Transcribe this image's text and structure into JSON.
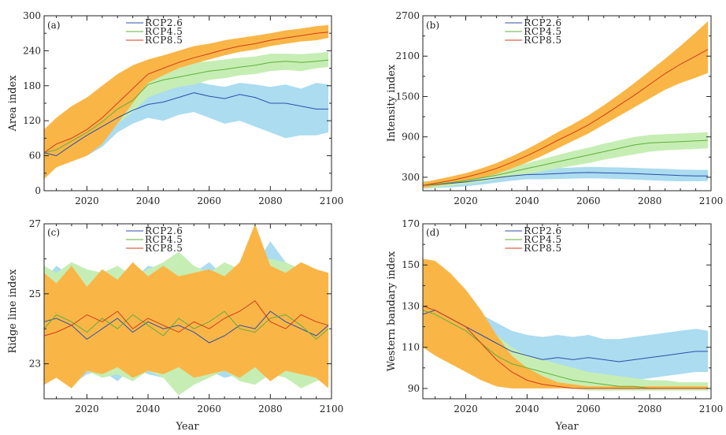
{
  "chart_data": [
    {
      "id": "a",
      "type": "line",
      "panel_label": "(a)",
      "ylabel": "Area index",
      "xlabel": "",
      "xlim": [
        2006,
        2100
      ],
      "ylim": [
        0,
        300
      ],
      "xticks": [
        2020,
        2040,
        2060,
        2080,
        2100
      ],
      "yticks": [
        0,
        60,
        120,
        180,
        240,
        300
      ],
      "x": [
        2006,
        2010,
        2015,
        2020,
        2025,
        2030,
        2035,
        2040,
        2045,
        2050,
        2055,
        2060,
        2065,
        2070,
        2075,
        2080,
        2085,
        2090,
        2095,
        2099
      ],
      "series": [
        {
          "name": "RCP2.6",
          "color": "#2c4fa8",
          "band_color": "#abdcf0",
          "values": [
            65,
            60,
            78,
            95,
            110,
            125,
            138,
            148,
            152,
            160,
            168,
            162,
            158,
            165,
            160,
            150,
            150,
            145,
            140,
            140
          ],
          "lower": [
            50,
            40,
            55,
            60,
            75,
            100,
            115,
            125,
            120,
            130,
            135,
            125,
            115,
            120,
            110,
            100,
            90,
            95,
            95,
            100
          ],
          "upper": [
            90,
            90,
            100,
            112,
            125,
            140,
            155,
            165,
            172,
            182,
            188,
            182,
            178,
            185,
            182,
            178,
            182,
            175,
            185,
            182
          ]
        },
        {
          "name": "RCP4.5",
          "color": "#5faf3a",
          "band_color": "#c6eeb4",
          "values": [
            65,
            70,
            85,
            100,
            118,
            140,
            155,
            182,
            190,
            195,
            200,
            205,
            208,
            212,
            215,
            220,
            222,
            220,
            222,
            224
          ],
          "lower": [
            25,
            40,
            60,
            78,
            95,
            115,
            135,
            160,
            170,
            178,
            182,
            190,
            193,
            198,
            200,
            205,
            207,
            205,
            210,
            212
          ],
          "upper": [
            105,
            110,
            120,
            130,
            145,
            162,
            180,
            200,
            210,
            215,
            220,
            222,
            225,
            228,
            230,
            235,
            235,
            234,
            236,
            238
          ]
        },
        {
          "name": "RCP8.5",
          "color": "#d43a1a",
          "band_color": "#f9b647",
          "values": [
            65,
            80,
            90,
            105,
            125,
            150,
            175,
            200,
            210,
            220,
            228,
            235,
            242,
            248,
            252,
            258,
            262,
            266,
            270,
            272
          ],
          "lower": [
            20,
            40,
            50,
            60,
            80,
            115,
            150,
            185,
            198,
            210,
            218,
            225,
            232,
            238,
            242,
            248,
            252,
            256,
            258,
            262
          ],
          "upper": [
            105,
            125,
            145,
            160,
            180,
            200,
            215,
            225,
            232,
            240,
            248,
            252,
            258,
            262,
            266,
            270,
            275,
            278,
            282,
            284
          ]
        }
      ]
    },
    {
      "id": "b",
      "type": "line",
      "panel_label": "(b)",
      "ylabel": "Intensity index",
      "xlabel": "",
      "xlim": [
        2006,
        2100
      ],
      "ylim": [
        100,
        2700
      ],
      "xticks": [
        2020,
        2040,
        2060,
        2080,
        2100
      ],
      "yticks": [
        300,
        900,
        1500,
        2100,
        2700
      ],
      "x": [
        2006,
        2010,
        2015,
        2020,
        2025,
        2030,
        2035,
        2040,
        2045,
        2050,
        2055,
        2060,
        2065,
        2070,
        2075,
        2080,
        2085,
        2090,
        2095,
        2099
      ],
      "series": [
        {
          "name": "RCP2.6",
          "color": "#2c4fa8",
          "band_color": "#abdcf0",
          "values": [
            180,
            190,
            210,
            230,
            260,
            290,
            320,
            340,
            345,
            355,
            365,
            370,
            365,
            360,
            355,
            345,
            335,
            325,
            320,
            320
          ],
          "lower": [
            130,
            140,
            150,
            165,
            190,
            220,
            250,
            270,
            270,
            275,
            280,
            285,
            280,
            275,
            265,
            255,
            245,
            240,
            240,
            245
          ],
          "upper": [
            240,
            250,
            270,
            295,
            320,
            350,
            380,
            410,
            420,
            435,
            445,
            455,
            450,
            445,
            440,
            430,
            425,
            415,
            410,
            410
          ]
        },
        {
          "name": "RCP4.5",
          "color": "#5faf3a",
          "band_color": "#c6eeb4",
          "values": [
            180,
            195,
            220,
            250,
            290,
            330,
            380,
            430,
            480,
            530,
            580,
            630,
            680,
            730,
            780,
            810,
            820,
            830,
            840,
            850
          ],
          "lower": [
            140,
            150,
            170,
            200,
            230,
            270,
            310,
            350,
            390,
            430,
            470,
            510,
            560,
            600,
            640,
            680,
            700,
            710,
            720,
            730
          ],
          "upper": [
            230,
            250,
            280,
            310,
            350,
            400,
            450,
            510,
            570,
            630,
            690,
            740,
            800,
            850,
            900,
            930,
            940,
            950,
            960,
            970
          ]
        },
        {
          "name": "RCP8.5",
          "color": "#d43a1a",
          "band_color": "#f9b647",
          "values": [
            180,
            210,
            250,
            300,
            360,
            430,
            520,
            620,
            730,
            850,
            960,
            1080,
            1220,
            1370,
            1520,
            1680,
            1840,
            1980,
            2100,
            2200
          ],
          "lower": [
            140,
            170,
            200,
            240,
            290,
            350,
            430,
            520,
            620,
            730,
            840,
            950,
            1080,
            1210,
            1340,
            1470,
            1600,
            1700,
            1780,
            1850
          ],
          "upper": [
            220,
            260,
            310,
            360,
            430,
            510,
            610,
            720,
            840,
            970,
            1090,
            1220,
            1370,
            1530,
            1700,
            1880,
            2060,
            2250,
            2450,
            2620
          ]
        }
      ]
    },
    {
      "id": "c",
      "type": "line",
      "panel_label": "(c)",
      "ylabel": "Ridge line index",
      "xlabel": "Year",
      "xlim": [
        2006,
        2100
      ],
      "ylim": [
        22,
        27
      ],
      "xticks": [
        2020,
        2040,
        2060,
        2080,
        2100
      ],
      "yticks": [
        23,
        25,
        27
      ],
      "x": [
        2006,
        2010,
        2015,
        2020,
        2025,
        2030,
        2035,
        2040,
        2045,
        2050,
        2055,
        2060,
        2065,
        2070,
        2075,
        2080,
        2085,
        2090,
        2095,
        2099
      ],
      "series": [
        {
          "name": "RCP2.6",
          "color": "#2c4fa8",
          "band_color": "#abdcf0",
          "values": [
            24.2,
            24.3,
            24.1,
            23.7,
            24.0,
            24.3,
            23.9,
            24.2,
            24.0,
            24.1,
            23.9,
            23.6,
            23.8,
            24.1,
            24.0,
            24.5,
            24.2,
            24.0,
            23.8,
            24.1
          ],
          "lower": [
            22.5,
            22.6,
            22.4,
            22.7,
            22.8,
            22.5,
            22.9,
            22.7,
            22.6,
            22.4,
            22.7,
            22.8,
            22.6,
            22.7,
            22.5,
            22.8,
            22.6,
            22.7,
            22.6,
            22.5
          ],
          "upper": [
            25.4,
            25.8,
            25.5,
            25.7,
            25.3,
            25.6,
            25.4,
            25.8,
            25.7,
            25.5,
            25.6,
            25.9,
            25.5,
            25.7,
            25.8,
            26.5,
            25.9,
            25.6,
            25.7,
            25.5
          ]
        },
        {
          "name": "RCP4.5",
          "color": "#5faf3a",
          "band_color": "#c6eeb4",
          "values": [
            24.0,
            24.4,
            24.2,
            23.9,
            24.3,
            24.0,
            24.4,
            24.1,
            23.8,
            24.3,
            24.0,
            24.2,
            24.5,
            24.0,
            23.9,
            24.3,
            24.4,
            24.1,
            23.7,
            24.0
          ],
          "lower": [
            22.6,
            22.7,
            22.5,
            22.8,
            22.6,
            22.7,
            22.5,
            22.8,
            22.6,
            22.1,
            22.4,
            22.6,
            22.8,
            22.5,
            22.4,
            22.7,
            22.6,
            22.3,
            22.5,
            22.6
          ],
          "upper": [
            25.8,
            25.6,
            25.9,
            25.7,
            25.6,
            25.8,
            25.5,
            25.7,
            25.9,
            26.2,
            25.8,
            25.6,
            25.9,
            25.7,
            25.8,
            26.0,
            25.9,
            25.7,
            25.6,
            25.5
          ]
        },
        {
          "name": "RCP8.5",
          "color": "#d43a1a",
          "band_color": "#f9b647",
          "values": [
            23.8,
            23.9,
            24.1,
            24.4,
            24.2,
            24.5,
            24.0,
            24.3,
            24.1,
            23.9,
            24.2,
            24.0,
            24.3,
            24.5,
            24.8,
            24.2,
            24.0,
            24.4,
            24.2,
            24.1
          ],
          "lower": [
            22.4,
            22.6,
            22.3,
            22.8,
            22.7,
            22.9,
            22.6,
            22.8,
            22.7,
            22.9,
            22.6,
            22.7,
            22.8,
            22.6,
            22.9,
            22.5,
            22.8,
            22.7,
            22.6,
            22.3
          ],
          "upper": [
            25.6,
            25.3,
            25.8,
            25.2,
            25.7,
            25.4,
            25.9,
            25.5,
            25.8,
            25.5,
            25.6,
            25.7,
            25.5,
            25.9,
            27.0,
            25.8,
            25.6,
            25.9,
            25.7,
            25.6
          ]
        }
      ]
    },
    {
      "id": "d",
      "type": "line",
      "panel_label": "(d)",
      "ylabel": "Western bandary index",
      "xlabel": "Year",
      "xlim": [
        2006,
        2100
      ],
      "ylim": [
        85,
        170
      ],
      "xticks": [
        2020,
        2040,
        2060,
        2080,
        2100
      ],
      "yticks": [
        90,
        110,
        130,
        150,
        170
      ],
      "x": [
        2006,
        2010,
        2015,
        2020,
        2025,
        2030,
        2035,
        2040,
        2045,
        2050,
        2055,
        2060,
        2065,
        2070,
        2075,
        2080,
        2085,
        2090,
        2095,
        2099
      ],
      "series": [
        {
          "name": "RCP2.6",
          "color": "#2c4fa8",
          "band_color": "#abdcf0",
          "values": [
            126,
            128,
            124,
            120,
            116,
            112,
            108,
            106,
            104,
            105,
            104,
            105,
            104,
            103,
            104,
            105,
            106,
            107,
            108,
            108
          ],
          "lower": [
            110,
            115,
            112,
            108,
            104,
            100,
            96,
            95,
            94,
            94,
            94,
            94,
            93,
            93,
            94,
            95,
            96,
            97,
            98,
            98
          ],
          "upper": [
            145,
            140,
            134,
            130,
            126,
            122,
            118,
            116,
            115,
            116,
            115,
            116,
            114,
            114,
            115,
            116,
            117,
            118,
            119,
            118
          ]
        },
        {
          "name": "RCP4.5",
          "color": "#5faf3a",
          "band_color": "#c6eeb4",
          "values": [
            128,
            126,
            122,
            118,
            112,
            106,
            102,
            100,
            98,
            96,
            94,
            93,
            92,
            91,
            91,
            90,
            90,
            90,
            90,
            90
          ],
          "lower": [
            112,
            108,
            104,
            100,
            96,
            94,
            92,
            91,
            90,
            90,
            90,
            89,
            89,
            89,
            89,
            89,
            89,
            89,
            89,
            89
          ],
          "upper": [
            140,
            136,
            132,
            128,
            122,
            116,
            110,
            106,
            104,
            102,
            100,
            98,
            97,
            96,
            95,
            94,
            94,
            93,
            93,
            93
          ]
        },
        {
          "name": "RCP8.5",
          "color": "#d43a1a",
          "band_color": "#f9b647",
          "values": [
            130,
            128,
            124,
            120,
            112,
            104,
            98,
            94,
            92,
            91,
            90,
            90,
            90,
            90,
            90,
            90,
            90,
            90,
            90,
            90
          ],
          "lower": [
            110,
            106,
            102,
            98,
            94,
            91,
            90,
            90,
            90,
            90,
            90,
            90,
            90,
            90,
            90,
            90,
            90,
            90,
            90,
            90
          ],
          "upper": [
            153,
            152,
            146,
            138,
            128,
            116,
            106,
            100,
            96,
            93,
            92,
            91,
            91,
            91,
            91,
            91,
            91,
            91,
            91,
            91
          ]
        }
      ]
    }
  ]
}
